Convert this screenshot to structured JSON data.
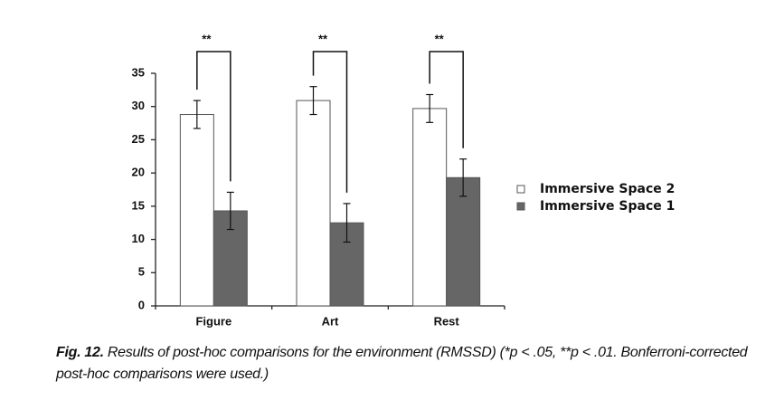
{
  "chart_data": {
    "type": "bar",
    "categories": [
      "Figure",
      "Art",
      "Rest"
    ],
    "series": [
      {
        "name": "Immersive Space 2",
        "color": "#ffffff",
        "values": [
          28.8,
          30.9,
          29.7
        ],
        "errors": [
          2.1,
          2.1,
          2.1
        ]
      },
      {
        "name": "Immersive Space 1",
        "color": "#666666",
        "values": [
          14.3,
          12.5,
          19.3
        ],
        "errors": [
          2.8,
          2.9,
          2.8
        ]
      }
    ],
    "significance": [
      "**",
      "**",
      "**"
    ],
    "ylim": [
      0,
      35
    ],
    "yticks": [
      0,
      5,
      10,
      15,
      20,
      25,
      30,
      35
    ],
    "grid": false,
    "legend": "right"
  },
  "caption": {
    "label": "Fig. 12.",
    "text": "Results of post-hoc comparisons for the environment (RMSSD) (*p < .05, **p < .01. Bonferroni-corrected post-hoc comparisons were used.)"
  }
}
